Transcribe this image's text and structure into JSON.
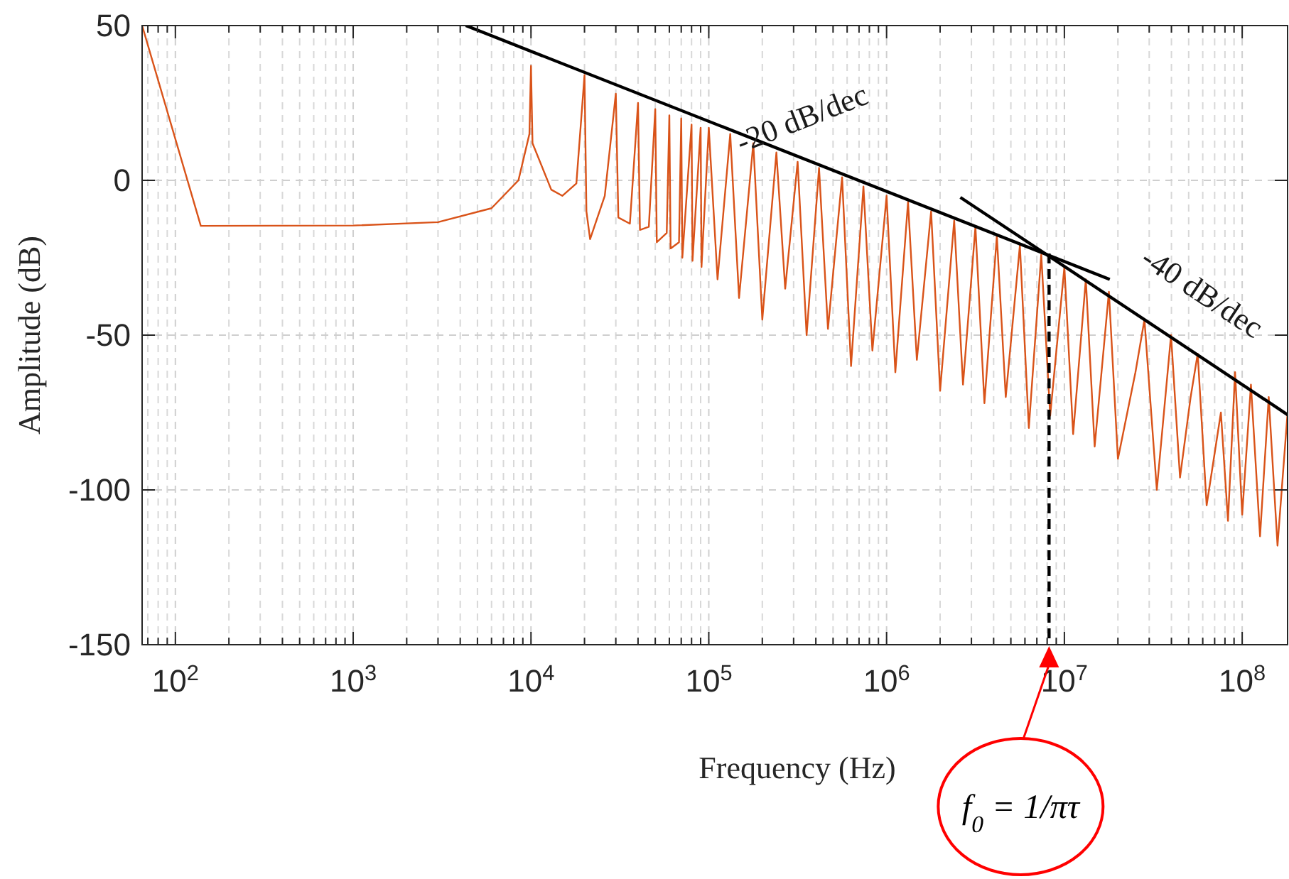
{
  "chart_data": {
    "type": "line",
    "xlabel": "Frequency (Hz)",
    "ylabel": "Amplitude (dB)",
    "log": "x",
    "grid": true,
    "xlim": [
      65,
      180000000
    ],
    "xticks": [
      {
        "value": 100,
        "label": "10$^{2}$"
      },
      {
        "value": 1000,
        "label": "10$^{3}$"
      },
      {
        "value": 10000,
        "label": "10$^{4}$"
      },
      {
        "value": 100000,
        "label": "10$^{5}$"
      },
      {
        "value": 1000000,
        "label": "10$^{6}$"
      },
      {
        "value": 10000000,
        "label": "10$^{7}$"
      },
      {
        "value": 100000000,
        "label": "10$^{8}$"
      }
    ],
    "ylim": [
      -150,
      50
    ],
    "yticks": [
      -150,
      -100,
      -50,
      0,
      50
    ],
    "series": [
      {
        "color": "#d95319",
        "line_style": "solid",
        "x": [
          65,
          139,
          1000,
          3000,
          6000,
          8500,
          9800,
          10000,
          10200,
          13000,
          15000,
          18000,
          20000,
          20500,
          21500,
          26000,
          30000,
          31000,
          36000,
          40000,
          41000,
          46000,
          50000,
          51000,
          58000,
          60000,
          61000,
          68000,
          70000,
          71000,
          80000,
          81000,
          90000,
          91000,
          100000,
          112000,
          132000,
          148000,
          178000,
          200000,
          240000,
          269000,
          316000,
          355000,
          417000,
          468000,
          562000,
          631000,
          741000,
          832000,
          1000000,
          1120000,
          1320000,
          1480000,
          1780000,
          2000000,
          2400000,
          2690000,
          3160000,
          3550000,
          4170000,
          4680000,
          5620000,
          6310000,
          7410000,
          8320000,
          10000000,
          11200000,
          13200000,
          14800000,
          17800000,
          20000000,
          25100000,
          28200000,
          33100000,
          39800000,
          44700000,
          51300000,
          56200000,
          63100000,
          75900000,
          83200000,
          91200000,
          100000000,
          112000000,
          126000000,
          141000000,
          158000000,
          180000000
        ],
        "values": [
          50,
          -14.7,
          -14.6,
          -13.5,
          -9,
          0,
          15,
          37,
          12,
          -3,
          -5,
          -1,
          34,
          -10,
          -19,
          -5,
          28,
          -12,
          -14,
          25,
          -16,
          -15,
          23,
          -20,
          -17,
          21,
          -22,
          -20,
          20,
          -25,
          18,
          -26,
          17,
          -28,
          17,
          -32,
          15,
          -38,
          12,
          -45,
          9,
          -35,
          6,
          -50,
          4,
          -48,
          1,
          -60,
          -2,
          -55,
          -5,
          -62,
          -7,
          -58,
          -10,
          -68,
          -13,
          -66,
          -15,
          -72,
          -18,
          -70,
          -21,
          -80,
          -24,
          -76,
          -28,
          -82,
          -32,
          -86,
          -36,
          -90,
          -62,
          -45,
          -100,
          -50,
          -96,
          -70,
          -56,
          -105,
          -75,
          -110,
          -62,
          -108,
          -66,
          -115,
          -70,
          -118,
          -75
        ]
      },
      {
        "color": "#000000",
        "line_style": "solid",
        "x": [
          4300,
          18000000
        ],
        "values": [
          50,
          -32
        ]
      },
      {
        "color": "#000000",
        "line_style": "solid",
        "x": [
          2600000,
          180000000
        ],
        "values": [
          -5.5,
          -75.7
        ]
      },
      {
        "color": "#000000",
        "line_style": "dashed",
        "x": [
          8200000,
          8200000
        ],
        "values": [
          -23.6,
          -150
        ]
      }
    ],
    "annotations": [
      "-20 dB/dec",
      "-40 dB/dec",
      "f$_{0}$ = 1/πτ"
    ]
  }
}
